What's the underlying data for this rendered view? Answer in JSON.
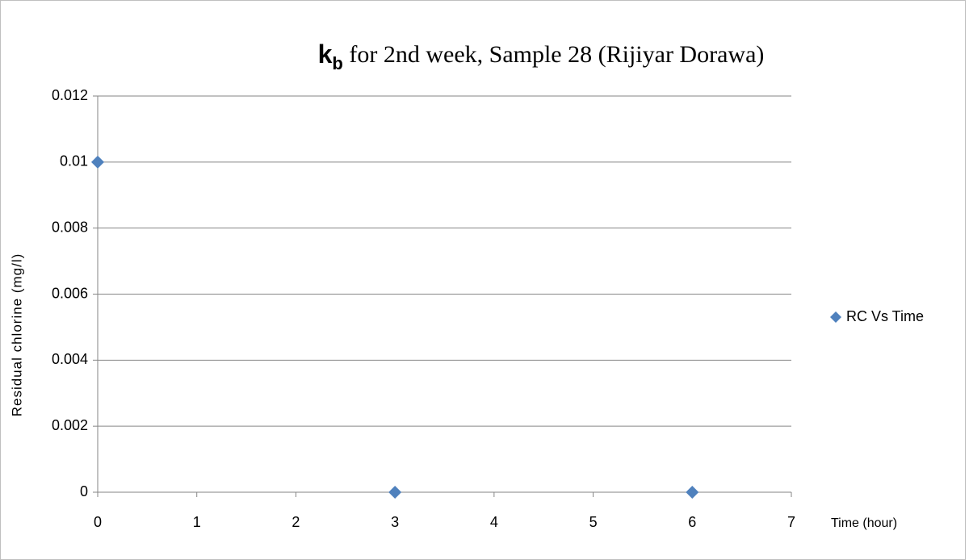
{
  "chart_data": {
    "type": "scatter",
    "title": {
      "symbol": "k",
      "subscript": "b",
      "text": " for 2nd week, Sample 28 (Rijiyar Dorawa)"
    },
    "x_label": "Time (hour)",
    "y_label": "Residual chlorine (mg/l)",
    "x": [
      0,
      3,
      6
    ],
    "series": [
      {
        "name": "RC Vs Time",
        "color": "#4f81bd",
        "values": [
          0.01,
          0,
          0
        ]
      }
    ],
    "xlim": [
      0,
      7
    ],
    "xticks": [
      0,
      1,
      2,
      3,
      4,
      5,
      6,
      7
    ],
    "ylim": [
      0,
      0.012
    ],
    "yticks": [
      0,
      0.002,
      0.004,
      0.006,
      0.008,
      0.01,
      0.012
    ],
    "grid": true,
    "legend": "right"
  }
}
